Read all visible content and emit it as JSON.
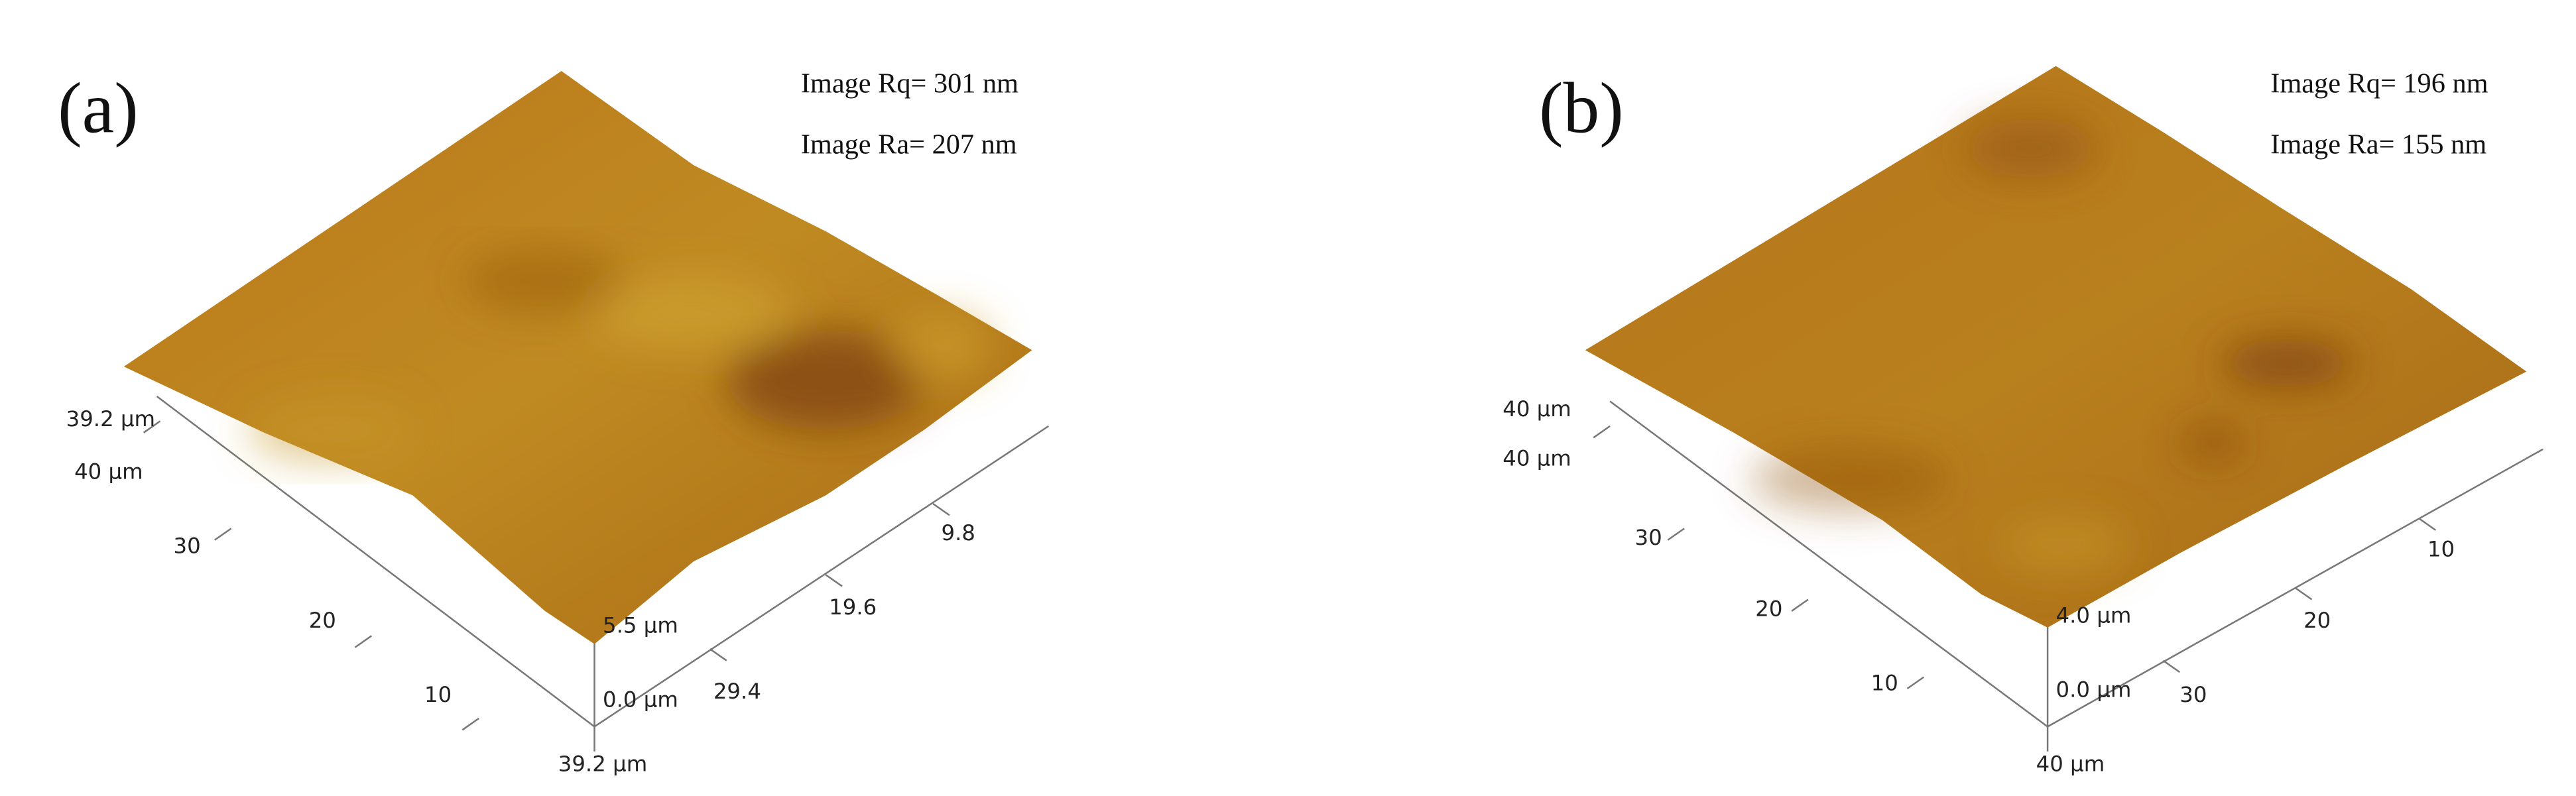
{
  "panels": [
    {
      "label": "(a)",
      "roughness": [
        "Image Rq= 301 nm",
        "Image Ra= 207 nm"
      ],
      "axis_labels": [
        "39.2 µm",
        "40 µm",
        "30",
        "20",
        "10",
        "5.5 µm",
        "0.0 µm",
        "39.2 µm",
        "29.4",
        "19.6",
        "9.8"
      ]
    },
    {
      "label": "(b)",
      "roughness": [
        "Image Rq= 196 nm",
        "Image Ra= 155 nm"
      ],
      "axis_labels": [
        "40 µm",
        "40 µm",
        "30",
        "20",
        "10",
        "4.0 µm",
        "0.0 µm",
        "40 µm",
        "30",
        "20",
        "10"
      ]
    }
  ]
}
